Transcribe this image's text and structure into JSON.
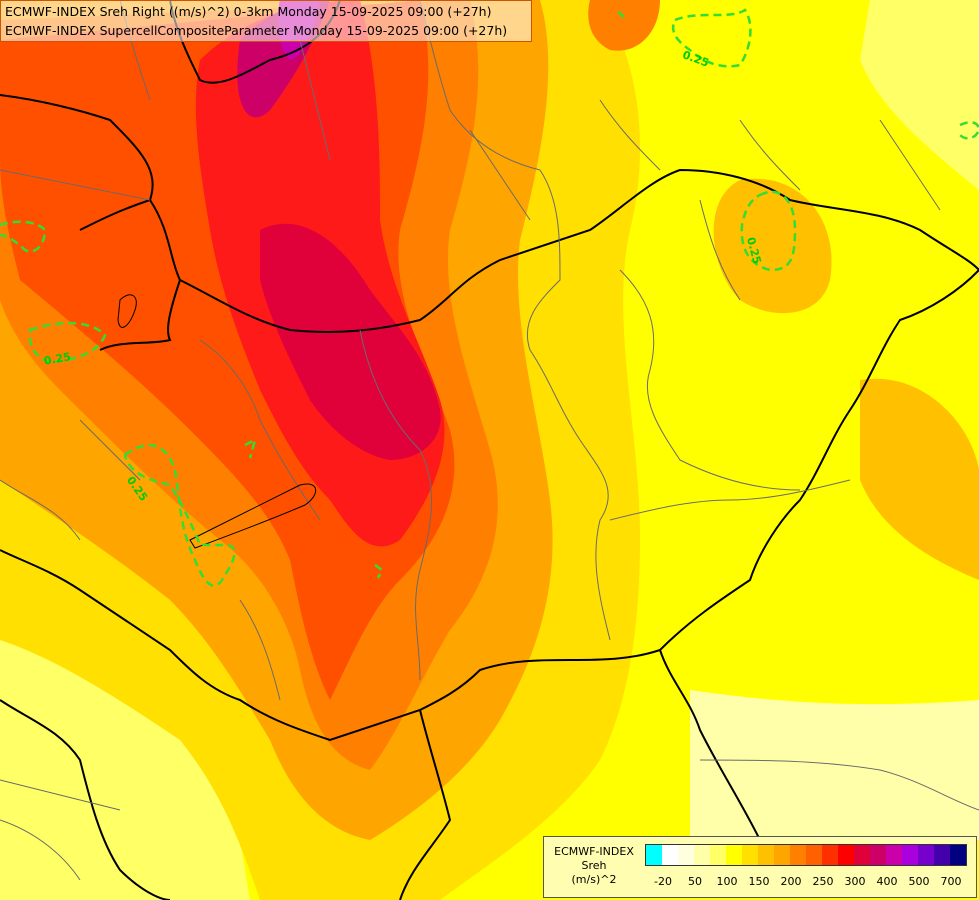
{
  "title": {
    "line1": "ECMWF-INDEX Sreh Right ((m/s)^2) 0-3km Monday 15-09-2025 09:00 (+27h)",
    "line2": "ECMWF-INDEX SupercellCompositeParameter Monday 15-09-2025 09:00 (+27h)"
  },
  "legend": {
    "label_lines": [
      "ECMWF-INDEX",
      "Sreh",
      "(m/s)^2"
    ],
    "colors": [
      "#00ffff",
      "#ffffff",
      "#ffffe0",
      "#ffffaa",
      "#ffff66",
      "#ffff00",
      "#ffe000",
      "#ffc000",
      "#ffa500",
      "#ff8000",
      "#ff6000",
      "#ff3000",
      "#ff0000",
      "#e0003a",
      "#cc0066",
      "#cc00aa",
      "#aa00dd",
      "#7700cc",
      "#4400aa",
      "#000080"
    ],
    "ticks": [
      "-20",
      "50",
      "100",
      "150",
      "200",
      "250",
      "300",
      "400",
      "500",
      "700"
    ]
  },
  "contours": {
    "label": "0.25",
    "color": "#33dd33"
  }
}
